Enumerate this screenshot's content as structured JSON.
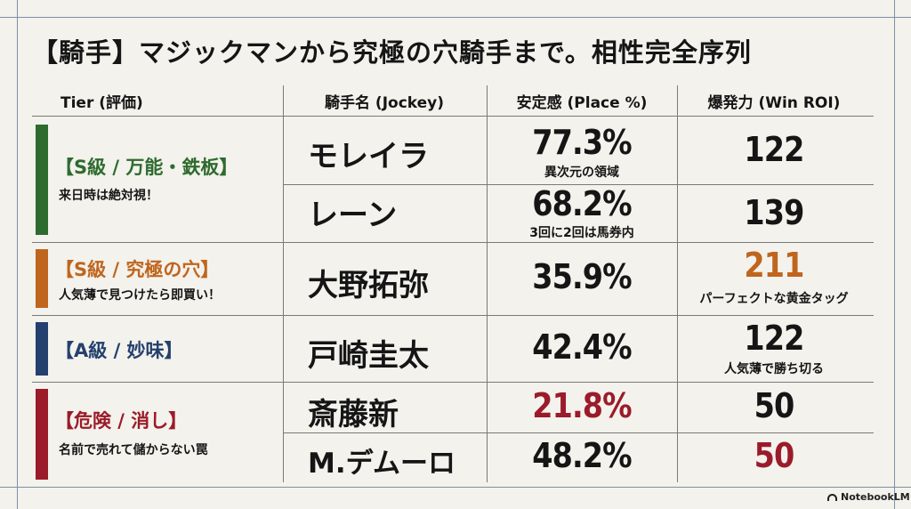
{
  "title": "【騎手】マジックマンから究極の穴騎手まで。相性完全序列",
  "headers": {
    "tier": "Tier (評価)",
    "jockey": "騎手名 (Jockey)",
    "place": "安定感 (Place %)",
    "roi": "爆発力 (Win ROI)"
  },
  "tiers": [
    {
      "label": "【S級 / 万能・鉄板】",
      "sub": "来日時は絶対視！",
      "color": "#2e6b2f",
      "rows": [
        {
          "jockey": "モレイラ",
          "place": "77.3%",
          "place_note": "異次元の領域",
          "roi": "122",
          "roi_note": ""
        },
        {
          "jockey": "レーン",
          "place": "68.2%",
          "place_note": "3回に2回は馬券内",
          "roi": "139",
          "roi_note": ""
        }
      ]
    },
    {
      "label": "【S級 / 究極の穴】",
      "sub": "人気薄で見つけたら即買い！",
      "color": "#c0651e",
      "rows": [
        {
          "jockey": "大野拓弥",
          "place": "35.9%",
          "place_note": "",
          "roi": "211",
          "roi_note": "パーフェクトな黄金タッグ"
        }
      ]
    },
    {
      "label": "【A級 / 妙味】",
      "sub": "",
      "color": "#24406e",
      "rows": [
        {
          "jockey": "戸崎圭太",
          "place": "42.4%",
          "place_note": "",
          "roi": "122",
          "roi_note": "人気薄で勝ち切る"
        }
      ]
    },
    {
      "label": "【危険 / 消し】",
      "sub": "名前で売れて儲からない罠",
      "color": "#9b1b2a",
      "rows": [
        {
          "jockey": "斎藤新",
          "place": "21.8%",
          "place_note": "",
          "roi": "50",
          "roi_note": ""
        },
        {
          "jockey": "M.デムーロ",
          "place": "48.2%",
          "place_note": "",
          "roi": "50",
          "roi_note": ""
        }
      ]
    }
  ],
  "highlight_colors": {
    "orange": "#c0651e",
    "red": "#9b1b2a"
  },
  "brand": "NotebookLM"
}
